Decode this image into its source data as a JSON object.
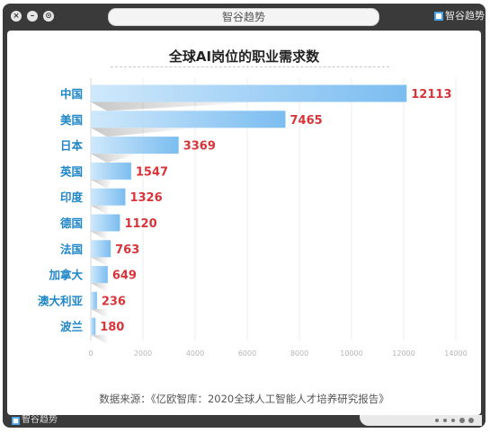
{
  "window": {
    "title": "智谷趋势",
    "brand": "智谷趋势"
  },
  "chart_data": {
    "type": "bar",
    "orientation": "horizontal",
    "title": "全球AI岗位的职业需求数",
    "categories": [
      "中国",
      "美国",
      "日本",
      "英国",
      "印度",
      "德国",
      "法国",
      "加拿大",
      "澳大利亚",
      "波兰"
    ],
    "values": [
      12113,
      7465,
      3369,
      1547,
      1326,
      1120,
      763,
      649,
      236,
      180
    ],
    "xlim": [
      0,
      14000
    ],
    "xticks": [
      0,
      2000,
      4000,
      6000,
      8000,
      10000,
      12000,
      14000
    ],
    "grid": true,
    "legend": "none",
    "colors": {
      "bar_start": "#cfe8fb",
      "bar_end": "#7bbdf0",
      "value_label": "#d9343a",
      "category_label": "#1f86c8"
    }
  },
  "source_text": "数据来源：《亿欧智库：2020全球人工智能人才培养研究报告》"
}
